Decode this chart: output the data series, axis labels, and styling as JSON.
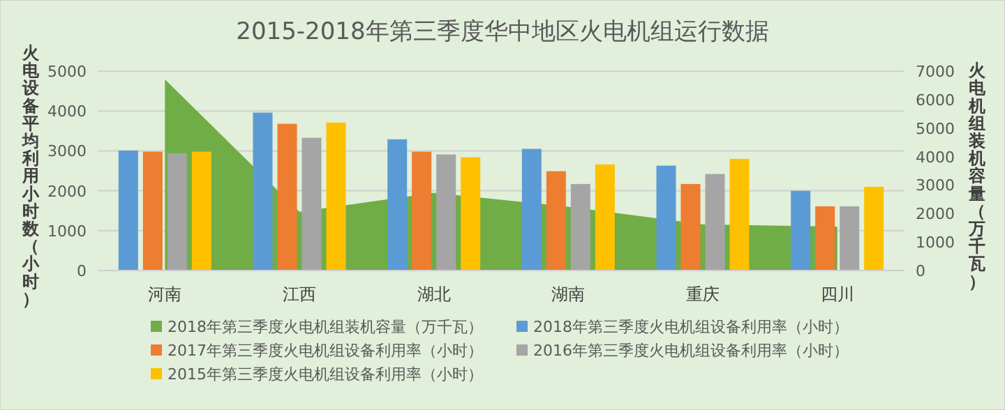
{
  "chart_data": {
    "type": "bar",
    "title": "2015-2018年第三季度华中地区火电机组运行数据",
    "ylabel": "火电设备平均利用小时数（小时）",
    "y2label": "火电机组装机容量（万千瓦）",
    "categories": [
      "河南",
      "江西",
      "湖北",
      "湖南",
      "重庆",
      "四川"
    ],
    "series": [
      {
        "name": "2018年第三季度火电机组装机容量（万千瓦）",
        "type": "area",
        "axis": "y2",
        "color": "#70ad47",
        "values": [
          6710,
          2060,
          2730,
          2240,
          1620,
          1540
        ]
      },
      {
        "name": "2018年第三季度火电机组设备利用率（小时）",
        "color": "#5b9bd5",
        "values": [
          3010,
          3960,
          3290,
          3050,
          2630,
          2000
        ]
      },
      {
        "name": "2017年第三季度火电机组设备利用率（小时）",
        "color": "#ed7d31",
        "values": [
          2980,
          3680,
          2980,
          2490,
          2170,
          1610
        ]
      },
      {
        "name": "2016年第三季度火电机组设备利用率（小时）",
        "color": "#a5a5a5",
        "values": [
          2940,
          3330,
          2910,
          2170,
          2420,
          1610
        ]
      },
      {
        "name": "2015年第三季度火电机组设备利用率（小时）",
        "color": "#ffc000",
        "values": [
          2980,
          3710,
          2840,
          2660,
          2800,
          2100
        ]
      }
    ],
    "ylim": [
      0,
      5000
    ],
    "yticks": [
      0,
      1000,
      2000,
      3000,
      4000,
      5000
    ],
    "y2lim": [
      0,
      7000
    ],
    "y2ticks": [
      0,
      1000,
      2000,
      3000,
      4000,
      5000,
      6000,
      7000
    ],
    "grid": "y",
    "legend": "bottom"
  }
}
